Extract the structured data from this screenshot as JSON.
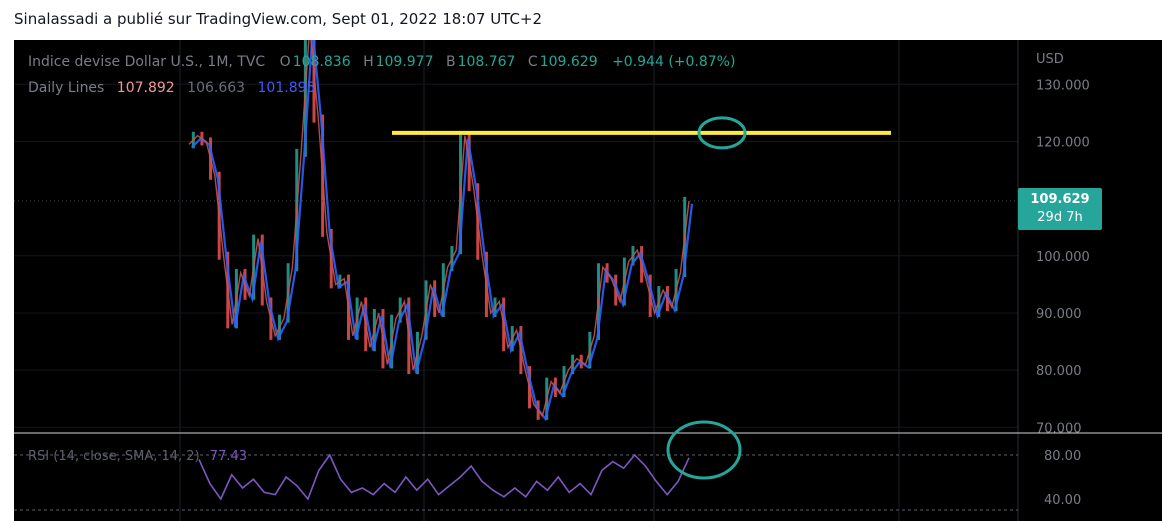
{
  "publication": {
    "text": "Sinalassadi a publié sur TradingView.com, Sept 01, 2022 18:07 UTC+2"
  },
  "legend": {
    "symbol": "Indice devise Dollar U.S., 1M, TVC",
    "open_label": "O",
    "open": "108.836",
    "high_label": "H",
    "high": "109.977",
    "low_label": "B",
    "low": "108.767",
    "close_label": "C",
    "close": "109.629",
    "change": "+0.944 (+0.87%)",
    "indicator_name": "Daily Lines",
    "line1_value": "107.892",
    "line2_value": "106.663",
    "line3_value": "101.895"
  },
  "rsi_legend": {
    "text": "RSI (14, close, SMA, 14, 2)",
    "value": "77.43"
  },
  "price_axis": {
    "currency": "USD",
    "ticks": [
      "130.000",
      "120.000",
      "100.000",
      "90.000",
      "80.000",
      "70.000"
    ]
  },
  "rsi_axis": {
    "ticks": [
      "80.00",
      "40.00"
    ]
  },
  "last_price": {
    "price": "109.629",
    "countdown": "29d 7h"
  },
  "colors": {
    "background": "#000000",
    "candle_up": "#26a69a",
    "candle_down": "#ef5350",
    "resistance_line": "#ffeb3b",
    "circle": "#26a69a",
    "rsi": "#7e57c2",
    "ma_blue": "#2962ff",
    "ma_red": "#ef5350"
  },
  "chart_data": [
    {
      "type": "line",
      "title": "",
      "xlabel": "",
      "ylabel": "",
      "ylim": [
        69,
        136
      ],
      "series": [
        {
          "name": "Indice devise Dollar U.S.",
          "values": [
            119.5,
            121,
            120,
            114,
            100,
            88,
            97,
            93,
            103,
            92,
            86,
            89,
            98,
            118,
            140,
            124,
            104,
            95,
            96,
            86,
            92,
            84,
            90,
            81,
            89,
            92,
            80,
            86,
            95,
            90,
            98,
            101,
            121,
            112,
            100,
            90,
            92,
            84,
            87,
            80,
            74,
            72,
            78,
            76,
            80,
            82,
            81,
            86,
            98,
            96,
            92,
            99,
            101,
            96,
            90,
            94,
            91,
            97,
            109.6
          ]
        }
      ],
      "annotations": {
        "resistance_level": 121.5
      }
    },
    {
      "type": "line",
      "title": "",
      "xlabel": "",
      "ylabel": "",
      "ylim": [
        20,
        100
      ],
      "series": [
        {
          "name": "RSI (14, close, SMA, 14, 2)",
          "values": [
            76,
            54,
            40,
            62,
            50,
            58,
            46,
            44,
            60,
            52,
            40,
            66,
            80,
            58,
            46,
            50,
            44,
            54,
            46,
            60,
            48,
            58,
            44,
            52,
            60,
            70,
            56,
            48,
            42,
            50,
            42,
            56,
            48,
            60,
            46,
            54,
            44,
            66,
            74,
            68,
            80,
            70,
            56,
            44,
            56,
            77.43
          ]
        }
      ]
    }
  ]
}
